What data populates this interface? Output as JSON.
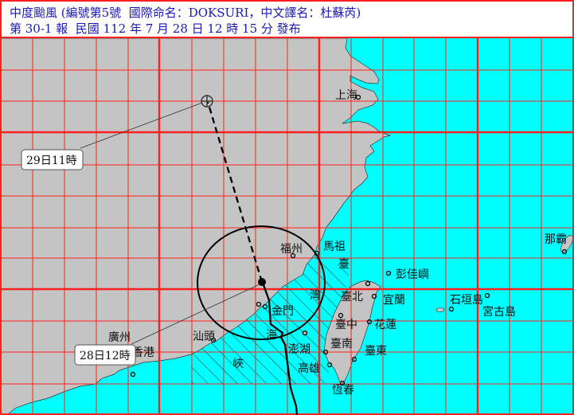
{
  "header": {
    "line1": "中度颱風 (編號第5號  國際命名：DOKSURI，中文譯名：杜蘇芮)",
    "line2": "第 30-1 報  民國 112 年 7 月 28 日 12 時 15 分 發布"
  },
  "colors": {
    "land": "#c4c4c4",
    "sea": "#00ffff",
    "grid": "#ff2020",
    "header_text": "#1a1ab0",
    "track": "#000000"
  },
  "places": {
    "shanghai": "上海",
    "fuzhou": "福州",
    "matsu": "馬祖",
    "pengjia": "彭佳嶼",
    "taipei": "臺北",
    "yilan": "宜蘭",
    "taichung": "臺中",
    "hualien": "花蓮",
    "tainan": "臺南",
    "taitung": "臺東",
    "kaohsiung": "高雄",
    "hengchun": "恆春",
    "penghu": "澎湖",
    "kinmen": "金門",
    "shantou": "汕頭",
    "guangzhou": "廣州",
    "hongkong": "香港",
    "ishigaki": "石垣島",
    "miyako": "宮古島",
    "naha": "那霸"
  },
  "strait": [
    "臺",
    "灣",
    "海",
    "峽"
  ],
  "track": {
    "current_label": "28日12時",
    "forecast_label": "29日11時",
    "forecast_icon": "circled-plus-icon",
    "current_icon": "filled-circle-icon"
  }
}
